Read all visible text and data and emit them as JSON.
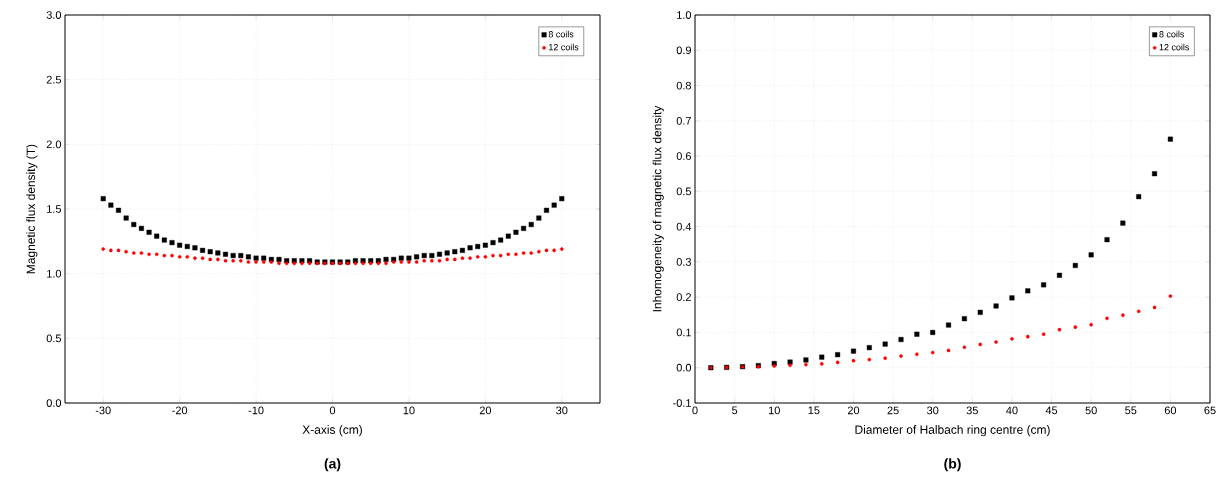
{
  "chart_data": [
    {
      "type": "scatter",
      "xlabel": "X-axis (cm)",
      "ylabel": "Magnetic flux density (T)",
      "annotations": [
        "(a)"
      ],
      "xlim": [
        -35,
        35
      ],
      "xticks": [
        -30,
        -20,
        -10,
        0,
        10,
        20,
        30
      ],
      "ylim": [
        0,
        3
      ],
      "yticks": [
        {
          "value": 0,
          "label": "0.0"
        },
        {
          "value": 0.5,
          "label": "0.5"
        },
        {
          "value": 1,
          "label": "1.0"
        },
        {
          "value": 1.5,
          "label": "1.5"
        },
        {
          "value": 2,
          "label": "2.0"
        },
        {
          "value": 2.5,
          "label": "2.5"
        },
        {
          "value": 3,
          "label": "3.0"
        }
      ],
      "grid": true,
      "legend": "top right",
      "x": [
        -30,
        -29,
        -28,
        -27,
        -26,
        -25,
        -24,
        -23,
        -22,
        -21,
        -20,
        -19,
        -18,
        -17,
        -16,
        -15,
        -14,
        -13,
        -12,
        -11,
        -10,
        -9,
        -8,
        -7,
        -6,
        -5,
        -4,
        -3,
        -2,
        -1,
        0,
        1,
        2,
        3,
        4,
        5,
        6,
        7,
        8,
        9,
        10,
        11,
        12,
        13,
        14,
        15,
        16,
        17,
        18,
        19,
        20,
        21,
        22,
        23,
        24,
        25,
        26,
        27,
        28,
        29,
        30
      ],
      "series": [
        {
          "name": "8 coils",
          "color": "#000000",
          "marker": "square",
          "values": [
            1.58,
            1.53,
            1.49,
            1.43,
            1.38,
            1.35,
            1.32,
            1.29,
            1.26,
            1.24,
            1.22,
            1.21,
            1.2,
            1.18,
            1.17,
            1.16,
            1.15,
            1.14,
            1.14,
            1.13,
            1.12,
            1.12,
            1.11,
            1.11,
            1.1,
            1.1,
            1.1,
            1.1,
            1.09,
            1.09,
            1.09,
            1.09,
            1.09,
            1.1,
            1.1,
            1.1,
            1.1,
            1.11,
            1.11,
            1.12,
            1.12,
            1.13,
            1.14,
            1.14,
            1.15,
            1.16,
            1.17,
            1.18,
            1.2,
            1.21,
            1.22,
            1.24,
            1.26,
            1.29,
            1.32,
            1.35,
            1.38,
            1.43,
            1.49,
            1.53,
            1.58
          ]
        },
        {
          "name": "12 coils",
          "color": "#ff0000",
          "marker": "circle",
          "values": [
            1.19,
            1.18,
            1.18,
            1.17,
            1.16,
            1.16,
            1.15,
            1.15,
            1.14,
            1.14,
            1.13,
            1.13,
            1.12,
            1.12,
            1.11,
            1.11,
            1.1,
            1.1,
            1.1,
            1.09,
            1.09,
            1.09,
            1.09,
            1.08,
            1.08,
            1.08,
            1.08,
            1.08,
            1.08,
            1.08,
            1.08,
            1.08,
            1.08,
            1.08,
            1.08,
            1.08,
            1.08,
            1.08,
            1.09,
            1.09,
            1.09,
            1.09,
            1.1,
            1.1,
            1.1,
            1.11,
            1.11,
            1.12,
            1.12,
            1.13,
            1.13,
            1.14,
            1.14,
            1.15,
            1.15,
            1.16,
            1.16,
            1.17,
            1.18,
            1.18,
            1.19
          ]
        }
      ]
    },
    {
      "type": "scatter",
      "xlabel": "Diameter of Halbach ring centre (cm)",
      "ylabel": "Inhomogeneity of magnetic flux density",
      "annotations": [
        "(b)"
      ],
      "xlim": [
        0,
        65
      ],
      "xticks": [
        0,
        5,
        10,
        15,
        20,
        25,
        30,
        35,
        40,
        45,
        50,
        55,
        60,
        65
      ],
      "ylim": [
        -0.1,
        1
      ],
      "yticks": [
        -0.1,
        {
          "value": 0,
          "label": "0.0"
        },
        0.1,
        0.2,
        0.3,
        0.4,
        0.5,
        0.6,
        0.7,
        0.8,
        0.9,
        {
          "value": 1,
          "label": "1.0"
        }
      ],
      "grid": true,
      "legend": "top right",
      "x": [
        2,
        4,
        6,
        8,
        10,
        12,
        14,
        16,
        18,
        20,
        22,
        24,
        26,
        28,
        30,
        32,
        34,
        36,
        38,
        40,
        42,
        44,
        46,
        48,
        50,
        52,
        54,
        56,
        58,
        60
      ],
      "series": [
        {
          "name": "8 coils",
          "color": "#000000",
          "marker": "square",
          "values": [
            0,
            0.001,
            0.003,
            0.006,
            0.012,
            0.016,
            0.022,
            0.03,
            0.037,
            0.047,
            0.057,
            0.067,
            0.08,
            0.095,
            0.1,
            0.121,
            0.139,
            0.157,
            0.175,
            0.198,
            0.218,
            0.235,
            0.262,
            0.29,
            0.32,
            0.363,
            0.41,
            0.485,
            0.55,
            0.648
          ]
        },
        {
          "name": "12 coils",
          "color": "#ff0000",
          "marker": "circle",
          "values": [
            0,
            0.001,
            0.002,
            0.003,
            0.005,
            0.007,
            0.009,
            0.011,
            0.015,
            0.02,
            0.023,
            0.027,
            0.033,
            0.038,
            0.043,
            0.049,
            0.058,
            0.066,
            0.073,
            0.082,
            0.088,
            0.095,
            0.108,
            0.115,
            0.122,
            0.14,
            0.149,
            0.16,
            0.171,
            0.203
          ]
        }
      ]
    }
  ]
}
